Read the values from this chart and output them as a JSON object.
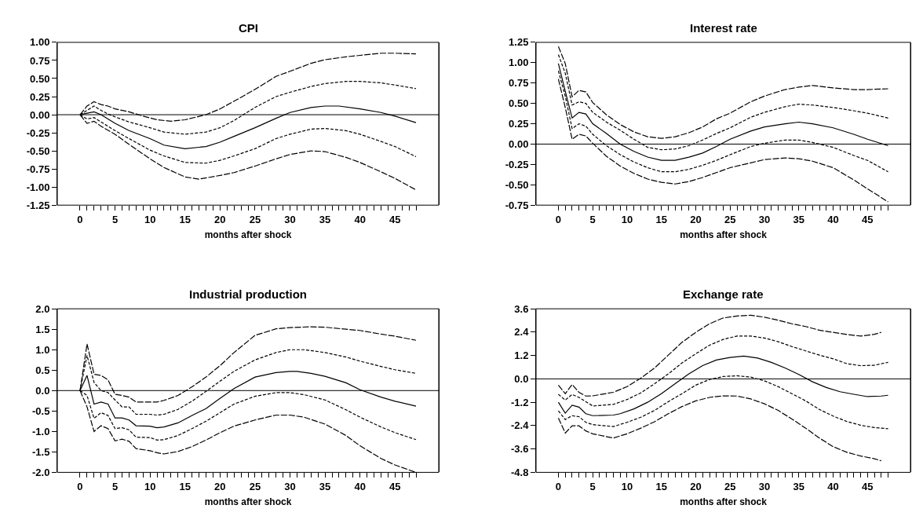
{
  "chart_data": [
    {
      "type": "line",
      "title": "CPI",
      "xlabel": "months after shock",
      "xlim": [
        -3.25,
        51.25
      ],
      "ylim": [
        -1.25,
        1.0
      ],
      "yticks": [
        {
          "value": -1.25,
          "label": "-1.25"
        },
        {
          "value": -1.0,
          "label": "-1.00"
        },
        {
          "value": -0.75,
          "label": "-0.75"
        },
        {
          "value": -0.5,
          "label": "-0.50"
        },
        {
          "value": -0.25,
          "label": "-0.25"
        },
        {
          "value": 0,
          "label": "0.00"
        },
        {
          "value": 0.25,
          "label": "0.25"
        },
        {
          "value": 0.5,
          "label": "0.50"
        },
        {
          "value": 0.75,
          "label": "0.75"
        },
        {
          "value": 1.0,
          "label": "1.00"
        }
      ],
      "xticks": [
        0,
        {
          "value": 1,
          "label": null
        },
        {
          "value": 2,
          "label": null
        },
        {
          "value": 3,
          "label": null
        },
        {
          "value": 4,
          "label": null
        },
        5,
        {
          "value": 6,
          "label": null
        },
        {
          "value": 7,
          "label": null
        },
        {
          "value": 8,
          "label": null
        },
        {
          "value": 9,
          "label": null
        },
        10,
        {
          "value": 11,
          "label": null
        },
        {
          "value": 12,
          "label": null
        },
        {
          "value": 13,
          "label": null
        },
        {
          "value": 14,
          "label": null
        },
        15,
        {
          "value": 16,
          "label": null
        },
        {
          "value": 17,
          "label": null
        },
        {
          "value": 18,
          "label": null
        },
        {
          "value": 19,
          "label": null
        },
        20,
        {
          "value": 21,
          "label": null
        },
        {
          "value": 22,
          "label": null
        },
        {
          "value": 23,
          "label": null
        },
        {
          "value": 24,
          "label": null
        },
        25,
        {
          "value": 26,
          "label": null
        },
        {
          "value": 27,
          "label": null
        },
        {
          "value": 28,
          "label": null
        },
        {
          "value": 29,
          "label": null
        },
        30,
        {
          "value": 31,
          "label": null
        },
        {
          "value": 32,
          "label": null
        },
        {
          "value": 33,
          "label": null
        },
        {
          "value": 34,
          "label": null
        },
        35,
        {
          "value": 36,
          "label": null
        },
        {
          "value": 37,
          "label": null
        },
        {
          "value": 38,
          "label": null
        },
        {
          "value": 39,
          "label": null
        },
        40,
        {
          "value": 41,
          "label": null
        },
        {
          "value": 42,
          "label": null
        },
        {
          "value": 43,
          "label": null
        },
        {
          "value": 44,
          "label": null
        },
        45,
        {
          "value": 46,
          "label": null
        },
        {
          "value": 47,
          "label": null
        },
        {
          "value": 48,
          "label": null
        }
      ],
      "ref_lines": [
        {
          "axis": "y",
          "value": 0,
          "color": "#000000"
        }
      ],
      "series": [
        {
          "color": "#000000",
          "line_style": "solid",
          "x": [
            0,
            1,
            2,
            3,
            4,
            5,
            7,
            10,
            12,
            15,
            18,
            20,
            22,
            25,
            28,
            30,
            33,
            35,
            37,
            40,
            43,
            45,
            48
          ],
          "values": [
            0,
            0.02,
            0.04,
            0,
            -0.06,
            -0.12,
            -0.22,
            -0.33,
            -0.42,
            -0.47,
            -0.44,
            -0.38,
            -0.3,
            -0.18,
            -0.05,
            0.03,
            0.1,
            0.12,
            0.12,
            0.08,
            0.03,
            -0.02,
            -0.11
          ]
        },
        {
          "color": "#000000",
          "line_style": "dashed",
          "x": [
            0,
            1,
            2,
            3,
            4,
            5,
            7,
            10,
            12,
            15,
            18,
            20,
            22,
            25,
            28,
            30,
            33,
            35,
            38,
            40,
            43,
            45,
            48
          ],
          "values": [
            0,
            0.06,
            0.12,
            0.06,
            0.01,
            -0.03,
            -0.1,
            -0.18,
            -0.24,
            -0.27,
            -0.24,
            -0.18,
            -0.08,
            0.1,
            0.25,
            0.31,
            0.39,
            0.43,
            0.46,
            0.46,
            0.44,
            0.41,
            0.36
          ]
        },
        {
          "color": "#000000",
          "line_style": "longdash",
          "x": [
            0,
            1,
            2,
            3,
            4,
            5,
            7,
            9,
            11,
            13,
            15,
            18,
            20,
            23,
            25,
            28,
            30,
            33,
            35,
            38,
            40,
            43,
            45,
            48
          ],
          "values": [
            0,
            0.12,
            0.18,
            0.14,
            0.12,
            0.08,
            0.04,
            -0.02,
            -0.07,
            -0.09,
            -0.07,
            0,
            0.08,
            0.24,
            0.35,
            0.53,
            0.6,
            0.71,
            0.76,
            0.8,
            0.82,
            0.85,
            0.85,
            0.84
          ]
        },
        {
          "color": "#000000",
          "line_style": "dashed",
          "x": [
            0,
            1,
            2,
            3,
            5,
            7,
            10,
            12,
            15,
            18,
            20,
            22,
            25,
            28,
            30,
            33,
            35,
            38,
            40,
            43,
            45,
            48
          ],
          "values": [
            0,
            -0.06,
            -0.04,
            -0.1,
            -0.22,
            -0.33,
            -0.49,
            -0.57,
            -0.66,
            -0.67,
            -0.63,
            -0.57,
            -0.47,
            -0.33,
            -0.27,
            -0.2,
            -0.19,
            -0.22,
            -0.27,
            -0.37,
            -0.44,
            -0.58
          ]
        },
        {
          "color": "#000000",
          "line_style": "longdash",
          "x": [
            0,
            1,
            2,
            3,
            5,
            7,
            10,
            12,
            15,
            17,
            20,
            22,
            25,
            28,
            30,
            33,
            35,
            38,
            40,
            43,
            45,
            48
          ],
          "values": [
            0,
            -0.12,
            -0.09,
            -0.16,
            -0.27,
            -0.41,
            -0.61,
            -0.73,
            -0.86,
            -0.89,
            -0.84,
            -0.8,
            -0.71,
            -0.61,
            -0.55,
            -0.5,
            -0.51,
            -0.59,
            -0.66,
            -0.79,
            -0.88,
            -1.04
          ]
        }
      ]
    },
    {
      "type": "line",
      "title": "Interest rate",
      "xlabel": "months after shock",
      "xlim": [
        -3.25,
        51.25
      ],
      "ylim": [
        -0.75,
        1.25
      ],
      "yticks": [
        {
          "value": -0.75,
          "label": "-0.75"
        },
        {
          "value": -0.5,
          "label": "-0.50"
        },
        {
          "value": -0.25,
          "label": "-0.25"
        },
        {
          "value": 0,
          "label": "0.00"
        },
        {
          "value": 0.25,
          "label": "0.25"
        },
        {
          "value": 0.5,
          "label": "0.50"
        },
        {
          "value": 0.75,
          "label": "0.75"
        },
        {
          "value": 1.0,
          "label": "1.00"
        },
        {
          "value": 1.25,
          "label": "1.25"
        }
      ],
      "xticks": [
        0,
        {
          "value": 1,
          "label": null
        },
        {
          "value": 2,
          "label": null
        },
        {
          "value": 3,
          "label": null
        },
        {
          "value": 4,
          "label": null
        },
        5,
        {
          "value": 6,
          "label": null
        },
        {
          "value": 7,
          "label": null
        },
        {
          "value": 8,
          "label": null
        },
        {
          "value": 9,
          "label": null
        },
        10,
        {
          "value": 11,
          "label": null
        },
        {
          "value": 12,
          "label": null
        },
        {
          "value": 13,
          "label": null
        },
        {
          "value": 14,
          "label": null
        },
        15,
        {
          "value": 16,
          "label": null
        },
        {
          "value": 17,
          "label": null
        },
        {
          "value": 18,
          "label": null
        },
        {
          "value": 19,
          "label": null
        },
        20,
        {
          "value": 21,
          "label": null
        },
        {
          "value": 22,
          "label": null
        },
        {
          "value": 23,
          "label": null
        },
        {
          "value": 24,
          "label": null
        },
        25,
        {
          "value": 26,
          "label": null
        },
        {
          "value": 27,
          "label": null
        },
        {
          "value": 28,
          "label": null
        },
        {
          "value": 29,
          "label": null
        },
        30,
        {
          "value": 31,
          "label": null
        },
        {
          "value": 32,
          "label": null
        },
        {
          "value": 33,
          "label": null
        },
        {
          "value": 34,
          "label": null
        },
        35,
        {
          "value": 36,
          "label": null
        },
        {
          "value": 37,
          "label": null
        },
        {
          "value": 38,
          "label": null
        },
        {
          "value": 39,
          "label": null
        },
        40,
        {
          "value": 41,
          "label": null
        },
        {
          "value": 42,
          "label": null
        },
        {
          "value": 43,
          "label": null
        },
        {
          "value": 44,
          "label": null
        },
        45,
        {
          "value": 46,
          "label": null
        },
        {
          "value": 47,
          "label": null
        },
        {
          "value": 48,
          "label": null
        }
      ],
      "ref_lines": [
        {
          "axis": "y",
          "value": 0,
          "color": "#000000"
        }
      ],
      "series": [
        {
          "color": "#000000",
          "line_style": "solid",
          "x": [
            0,
            1,
            2,
            3,
            4,
            5,
            7,
            9,
            11,
            13,
            15,
            17,
            19,
            21,
            23,
            25,
            28,
            30,
            33,
            35,
            37,
            40,
            43,
            45,
            48
          ],
          "values": [
            0.99,
            0.65,
            0.32,
            0.39,
            0.37,
            0.25,
            0.13,
            0,
            -0.09,
            -0.16,
            -0.2,
            -0.2,
            -0.16,
            -0.11,
            -0.03,
            0.06,
            0.16,
            0.21,
            0.25,
            0.27,
            0.25,
            0.2,
            0.12,
            0.06,
            -0.02
          ]
        },
        {
          "color": "#000000",
          "line_style": "dashed",
          "x": [
            0,
            1,
            2,
            3,
            4,
            5,
            7,
            9,
            11,
            13,
            15,
            17,
            19,
            21,
            23,
            25,
            28,
            30,
            33,
            35,
            37,
            40,
            43,
            45,
            48
          ],
          "values": [
            1.1,
            0.87,
            0.48,
            0.52,
            0.5,
            0.39,
            0.27,
            0.17,
            0.06,
            -0.04,
            -0.07,
            -0.06,
            -0.02,
            0.05,
            0.13,
            0.2,
            0.33,
            0.39,
            0.46,
            0.49,
            0.48,
            0.45,
            0.41,
            0.38,
            0.32
          ]
        },
        {
          "color": "#000000",
          "line_style": "longdash",
          "x": [
            0,
            1,
            2,
            3,
            4,
            5,
            7,
            9,
            11,
            13,
            15,
            17,
            19,
            21,
            23,
            25,
            28,
            30,
            33,
            35,
            37,
            40,
            43,
            45,
            48
          ],
          "values": [
            1.2,
            0.99,
            0.58,
            0.66,
            0.64,
            0.51,
            0.36,
            0.24,
            0.15,
            0.09,
            0.07,
            0.09,
            0.14,
            0.21,
            0.31,
            0.38,
            0.52,
            0.59,
            0.67,
            0.7,
            0.72,
            0.69,
            0.67,
            0.67,
            0.68
          ]
        },
        {
          "color": "#000000",
          "line_style": "dashed",
          "x": [
            0,
            1,
            2,
            3,
            4,
            5,
            7,
            9,
            11,
            13,
            15,
            17,
            19,
            21,
            23,
            25,
            28,
            30,
            33,
            35,
            37,
            40,
            43,
            45,
            48
          ],
          "values": [
            0.9,
            0.59,
            0.19,
            0.25,
            0.22,
            0.12,
            -0.02,
            -0.13,
            -0.22,
            -0.29,
            -0.34,
            -0.34,
            -0.31,
            -0.26,
            -0.2,
            -0.13,
            -0.03,
            0.01,
            0.05,
            0.05,
            0.02,
            -0.04,
            -0.14,
            -0.2,
            -0.34
          ]
        },
        {
          "color": "#000000",
          "line_style": "longdash",
          "x": [
            0,
            1,
            2,
            3,
            4,
            5,
            7,
            9,
            11,
            13,
            15,
            17,
            19,
            21,
            23,
            25,
            28,
            30,
            33,
            35,
            37,
            40,
            43,
            45,
            48
          ],
          "values": [
            0.8,
            0.45,
            0.06,
            0.12,
            0.1,
            0.01,
            -0.15,
            -0.27,
            -0.36,
            -0.43,
            -0.47,
            -0.49,
            -0.46,
            -0.41,
            -0.35,
            -0.29,
            -0.23,
            -0.19,
            -0.17,
            -0.18,
            -0.21,
            -0.29,
            -0.44,
            -0.55,
            -0.71
          ]
        }
      ]
    },
    {
      "type": "line",
      "title": "Industrial production",
      "xlabel": "months after shock",
      "xlim": [
        -3.25,
        51.25
      ],
      "ylim": [
        -2.0,
        2.0
      ],
      "yticks": [
        {
          "value": -2,
          "label": "-2.0"
        },
        -1.5,
        {
          "value": -1,
          "label": "-1.0"
        },
        -0.5,
        {
          "value": 0,
          "label": "0.0"
        },
        0.5,
        {
          "value": 1,
          "label": "1.0"
        },
        1.5,
        {
          "value": 2,
          "label": "2.0"
        }
      ],
      "xticks": [
        0,
        {
          "value": 1,
          "label": null
        },
        {
          "value": 2,
          "label": null
        },
        {
          "value": 3,
          "label": null
        },
        {
          "value": 4,
          "label": null
        },
        5,
        {
          "value": 6,
          "label": null
        },
        {
          "value": 7,
          "label": null
        },
        {
          "value": 8,
          "label": null
        },
        {
          "value": 9,
          "label": null
        },
        10,
        {
          "value": 11,
          "label": null
        },
        {
          "value": 12,
          "label": null
        },
        {
          "value": 13,
          "label": null
        },
        {
          "value": 14,
          "label": null
        },
        15,
        {
          "value": 16,
          "label": null
        },
        {
          "value": 17,
          "label": null
        },
        {
          "value": 18,
          "label": null
        },
        {
          "value": 19,
          "label": null
        },
        20,
        {
          "value": 21,
          "label": null
        },
        {
          "value": 22,
          "label": null
        },
        {
          "value": 23,
          "label": null
        },
        {
          "value": 24,
          "label": null
        },
        25,
        {
          "value": 26,
          "label": null
        },
        {
          "value": 27,
          "label": null
        },
        {
          "value": 28,
          "label": null
        },
        {
          "value": 29,
          "label": null
        },
        30,
        {
          "value": 31,
          "label": null
        },
        {
          "value": 32,
          "label": null
        },
        {
          "value": 33,
          "label": null
        },
        {
          "value": 34,
          "label": null
        },
        35,
        {
          "value": 36,
          "label": null
        },
        {
          "value": 37,
          "label": null
        },
        {
          "value": 38,
          "label": null
        },
        {
          "value": 39,
          "label": null
        },
        40,
        {
          "value": 41,
          "label": null
        },
        {
          "value": 42,
          "label": null
        },
        {
          "value": 43,
          "label": null
        },
        {
          "value": 44,
          "label": null
        },
        45,
        {
          "value": 46,
          "label": null
        },
        {
          "value": 47,
          "label": null
        },
        {
          "value": 48,
          "label": null
        }
      ],
      "ref_lines": [
        {
          "axis": "y",
          "value": 0,
          "color": "#000000"
        }
      ],
      "series": [
        {
          "color": "#000000",
          "line_style": "solid",
          "x": [
            0,
            1,
            2,
            3,
            4,
            5,
            6,
            7,
            8,
            10,
            11,
            12,
            14,
            16,
            18,
            20,
            22,
            25,
            28,
            30,
            31,
            33,
            35,
            38,
            40,
            43,
            45,
            48
          ],
          "values": [
            0,
            0.37,
            -0.33,
            -0.28,
            -0.33,
            -0.67,
            -0.67,
            -0.72,
            -0.86,
            -0.87,
            -0.91,
            -0.89,
            -0.79,
            -0.61,
            -0.44,
            -0.19,
            0.05,
            0.33,
            0.44,
            0.47,
            0.47,
            0.42,
            0.35,
            0.19,
            0.02,
            -0.16,
            -0.26,
            -0.38
          ]
        },
        {
          "color": "#000000",
          "line_style": "dashed",
          "x": [
            0,
            1,
            2,
            3,
            4,
            5,
            6,
            7,
            8,
            10,
            11,
            12,
            14,
            16,
            18,
            20,
            22,
            25,
            28,
            30,
            32,
            35,
            38,
            40,
            43,
            45,
            48
          ],
          "values": [
            0,
            0.86,
            0.2,
            0,
            -0.05,
            -0.23,
            -0.4,
            -0.4,
            -0.58,
            -0.58,
            -0.6,
            -0.58,
            -0.46,
            -0.26,
            -0.02,
            0.23,
            0.47,
            0.75,
            0.93,
            1.0,
            1.0,
            0.93,
            0.82,
            0.72,
            0.59,
            0.51,
            0.42
          ]
        },
        {
          "color": "#000000",
          "line_style": "longdash",
          "x": [
            0,
            1,
            2,
            3,
            4,
            5,
            6,
            7,
            8,
            10,
            11,
            12,
            14,
            16,
            18,
            20,
            22,
            25,
            28,
            30,
            33,
            35,
            38,
            40,
            43,
            45,
            48
          ],
          "values": [
            0,
            1.14,
            0.4,
            0.37,
            0.26,
            -0.09,
            -0.12,
            -0.16,
            -0.28,
            -0.28,
            -0.28,
            -0.24,
            -0.12,
            0.09,
            0.33,
            0.61,
            0.93,
            1.35,
            1.51,
            1.54,
            1.56,
            1.55,
            1.5,
            1.47,
            1.38,
            1.33,
            1.23
          ]
        },
        {
          "color": "#000000",
          "line_style": "dashed",
          "x": [
            0,
            1,
            2,
            3,
            4,
            5,
            6,
            7,
            8,
            10,
            11,
            12,
            14,
            16,
            18,
            20,
            22,
            25,
            28,
            30,
            32,
            35,
            38,
            40,
            43,
            45,
            48
          ],
          "values": [
            0,
            -0.12,
            -0.68,
            -0.54,
            -0.61,
            -0.93,
            -0.91,
            -0.96,
            -1.14,
            -1.15,
            -1.21,
            -1.2,
            -1.1,
            -0.93,
            -0.75,
            -0.54,
            -0.33,
            -0.14,
            -0.05,
            -0.05,
            -0.1,
            -0.23,
            -0.47,
            -0.65,
            -0.89,
            -1.03,
            -1.2
          ]
        },
        {
          "color": "#000000",
          "line_style": "longdash",
          "x": [
            0,
            1,
            2,
            3,
            4,
            5,
            6,
            7,
            8,
            10,
            11,
            12,
            14,
            16,
            18,
            20,
            22,
            25,
            28,
            30,
            32,
            35,
            38,
            40,
            43,
            45,
            48
          ],
          "values": [
            0,
            -0.4,
            -1.0,
            -0.86,
            -0.93,
            -1.23,
            -1.19,
            -1.24,
            -1.42,
            -1.47,
            -1.52,
            -1.55,
            -1.49,
            -1.37,
            -1.21,
            -1.03,
            -0.87,
            -0.72,
            -0.6,
            -0.6,
            -0.65,
            -0.82,
            -1.1,
            -1.35,
            -1.66,
            -1.82,
            -2.0
          ]
        }
      ]
    },
    {
      "type": "line",
      "title": "Exchange rate",
      "xlabel": "months after shock",
      "xlim": [
        -3.25,
        51.25
      ],
      "ylim": [
        -4.8,
        3.6
      ],
      "yticks": [
        -4.8,
        -3.6,
        -2.4,
        -1.2,
        {
          "value": 0,
          "label": "0.0"
        },
        1.2,
        2.4,
        3.6
      ],
      "xticks": [
        0,
        {
          "value": 1,
          "label": null
        },
        {
          "value": 2,
          "label": null
        },
        {
          "value": 3,
          "label": null
        },
        {
          "value": 4,
          "label": null
        },
        5,
        {
          "value": 6,
          "label": null
        },
        {
          "value": 7,
          "label": null
        },
        {
          "value": 8,
          "label": null
        },
        {
          "value": 9,
          "label": null
        },
        10,
        {
          "value": 11,
          "label": null
        },
        {
          "value": 12,
          "label": null
        },
        {
          "value": 13,
          "label": null
        },
        {
          "value": 14,
          "label": null
        },
        15,
        {
          "value": 16,
          "label": null
        },
        {
          "value": 17,
          "label": null
        },
        {
          "value": 18,
          "label": null
        },
        {
          "value": 19,
          "label": null
        },
        20,
        {
          "value": 21,
          "label": null
        },
        {
          "value": 22,
          "label": null
        },
        {
          "value": 23,
          "label": null
        },
        {
          "value": 24,
          "label": null
        },
        25,
        {
          "value": 26,
          "label": null
        },
        {
          "value": 27,
          "label": null
        },
        {
          "value": 28,
          "label": null
        },
        {
          "value": 29,
          "label": null
        },
        30,
        {
          "value": 31,
          "label": null
        },
        {
          "value": 32,
          "label": null
        },
        {
          "value": 33,
          "label": null
        },
        {
          "value": 34,
          "label": null
        },
        35,
        {
          "value": 36,
          "label": null
        },
        {
          "value": 37,
          "label": null
        },
        {
          "value": 38,
          "label": null
        },
        {
          "value": 39,
          "label": null
        },
        40,
        {
          "value": 41,
          "label": null
        },
        {
          "value": 42,
          "label": null
        },
        {
          "value": 43,
          "label": null
        },
        {
          "value": 44,
          "label": null
        },
        45,
        {
          "value": 46,
          "label": null
        },
        {
          "value": 47,
          "label": null
        },
        {
          "value": 48,
          "label": null
        }
      ],
      "ref_lines": [
        {
          "axis": "y",
          "value": 0,
          "color": "#000000"
        }
      ],
      "series": [
        {
          "color": "#000000",
          "line_style": "solid",
          "x": [
            0,
            1,
            2,
            3,
            4,
            5,
            8,
            9,
            11,
            13,
            15,
            17,
            19,
            21,
            23,
            25,
            27,
            29,
            31,
            33,
            35,
            37,
            39,
            41,
            43,
            45,
            47,
            48
          ],
          "values": [
            -1.2,
            -1.76,
            -1.35,
            -1.45,
            -1.79,
            -1.89,
            -1.86,
            -1.79,
            -1.54,
            -1.2,
            -0.76,
            -0.25,
            0.26,
            0.68,
            0.97,
            1.1,
            1.17,
            1.07,
            0.85,
            0.56,
            0.23,
            -0.15,
            -0.44,
            -0.66,
            -0.79,
            -0.91,
            -0.88,
            -0.84
          ]
        },
        {
          "color": "#000000",
          "line_style": "dashed",
          "x": [
            0,
            1,
            2,
            3,
            4,
            5,
            8,
            10,
            12,
            14,
            16,
            18,
            20,
            22,
            24,
            26,
            28,
            30,
            32,
            34,
            36,
            38,
            40,
            42,
            44,
            46,
            48
          ],
          "values": [
            -0.79,
            -1.09,
            -0.8,
            -0.95,
            -1.17,
            -1.39,
            -1.31,
            -1.06,
            -0.72,
            -0.25,
            0.26,
            0.82,
            1.29,
            1.73,
            2.03,
            2.2,
            2.2,
            2.1,
            1.91,
            1.66,
            1.44,
            1.22,
            1.03,
            0.78,
            0.68,
            0.7,
            0.85
          ]
        },
        {
          "color": "#000000",
          "line_style": "longdash",
          "x": [
            0,
            1,
            2,
            3,
            4,
            5,
            8,
            10,
            12,
            14,
            16,
            18,
            20,
            22,
            24,
            26,
            28,
            30,
            32,
            34,
            36,
            38,
            40,
            42,
            44,
            46,
            47
          ],
          "values": [
            -0.32,
            -0.76,
            -0.29,
            -0.69,
            -0.88,
            -0.87,
            -0.69,
            -0.4,
            0.04,
            0.56,
            1.22,
            1.88,
            2.39,
            2.83,
            3.13,
            3.23,
            3.27,
            3.17,
            3.01,
            2.83,
            2.69,
            2.5,
            2.39,
            2.28,
            2.2,
            2.29,
            2.39
          ]
        },
        {
          "color": "#000000",
          "line_style": "dashed",
          "x": [
            0,
            1,
            2,
            3,
            4,
            5,
            8,
            10,
            12,
            14,
            16,
            18,
            20,
            22,
            24,
            26,
            28,
            30,
            32,
            34,
            36,
            38,
            40,
            42,
            44,
            46,
            48
          ],
          "values": [
            -1.64,
            -2.09,
            -1.89,
            -1.94,
            -2.23,
            -2.35,
            -2.45,
            -2.23,
            -1.97,
            -1.62,
            -1.17,
            -0.76,
            -0.32,
            -0.03,
            0.12,
            0.16,
            0.09,
            -0.1,
            -0.4,
            -0.76,
            -1.13,
            -1.57,
            -1.91,
            -2.19,
            -2.38,
            -2.5,
            -2.56
          ]
        },
        {
          "color": "#000000",
          "line_style": "longdash",
          "x": [
            0,
            1,
            2,
            3,
            4,
            5,
            8,
            10,
            12,
            14,
            16,
            18,
            20,
            22,
            24,
            26,
            28,
            30,
            32,
            34,
            36,
            38,
            40,
            42,
            44,
            46,
            47
          ],
          "values": [
            -2.01,
            -2.78,
            -2.41,
            -2.41,
            -2.67,
            -2.82,
            -3.04,
            -2.82,
            -2.53,
            -2.2,
            -1.79,
            -1.42,
            -1.13,
            -0.95,
            -0.87,
            -0.88,
            -1.03,
            -1.28,
            -1.62,
            -2.06,
            -2.53,
            -3.04,
            -3.48,
            -3.77,
            -3.96,
            -4.1,
            -4.21
          ]
        }
      ]
    }
  ]
}
